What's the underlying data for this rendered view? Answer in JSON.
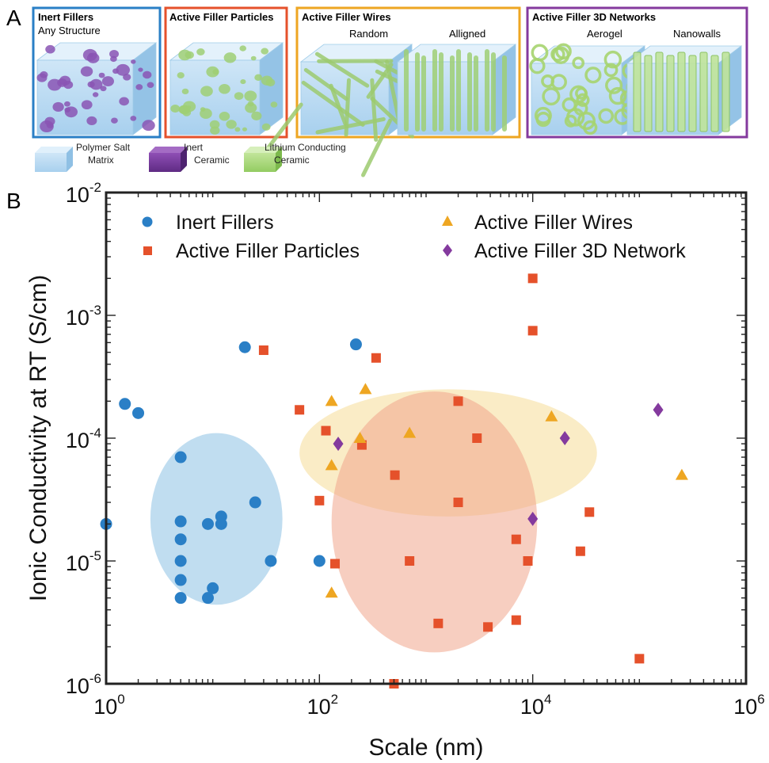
{
  "panel_a": {
    "letter": "A",
    "boxes": [
      {
        "title": "Inert Fillers",
        "subtitle": "Any Structure",
        "color": "#2a7fc6",
        "sublabels": []
      },
      {
        "title": "Active Filler Particles",
        "subtitle": "",
        "color": "#e5512b",
        "sublabels": []
      },
      {
        "title": "Active Filler Wires",
        "subtitle": "",
        "color": "#eea622",
        "sublabels": [
          "Random",
          "Alligned"
        ]
      },
      {
        "title": "Active Filler 3D Networks",
        "subtitle": "",
        "color": "#843a9e",
        "sublabels": [
          "Aerogel",
          "Nanowalls"
        ]
      }
    ],
    "legend": [
      {
        "line1": "Polymer Salt",
        "line2": "Matrix",
        "color": "#a9d3f0"
      },
      {
        "line1": "Inert",
        "line2": "Ceramic",
        "color": "#7a3fa0"
      },
      {
        "line1": "Lithium Conducting",
        "line2": "Ceramic",
        "color": "#a7d77a"
      }
    ]
  },
  "chart_data": {
    "panel_letter": "B",
    "type": "scatter",
    "x_scale": "log",
    "y_scale": "log",
    "xlabel": "Scale (nm)",
    "ylabel": "Ionic Conductivity at RT (S/cm)",
    "xlim": [
      1,
      1000000
    ],
    "ylim": [
      1e-06,
      0.01
    ],
    "x_ticks": [
      {
        "base": "10",
        "exp": "0"
      },
      {
        "base": "10",
        "exp": "2"
      },
      {
        "base": "10",
        "exp": "4"
      },
      {
        "base": "10",
        "exp": "6"
      }
    ],
    "y_ticks": [
      {
        "base": "10",
        "exp": "-6"
      },
      {
        "base": "10",
        "exp": "-5"
      },
      {
        "base": "10",
        "exp": "-4"
      },
      {
        "base": "10",
        "exp": "-3"
      },
      {
        "base": "10",
        "exp": "-2"
      }
    ],
    "grid": false,
    "legend_position": "top",
    "series": [
      {
        "name": "Inert Fillers",
        "marker": "circle",
        "color": "#2a7fc6",
        "points": [
          [
            1,
            2e-05
          ],
          [
            1.5,
            0.00019
          ],
          [
            2,
            0.00016
          ],
          [
            5,
            7e-05
          ],
          [
            5,
            2.1e-05
          ],
          [
            5,
            1.5e-05
          ],
          [
            5,
            1e-05
          ],
          [
            5,
            7e-06
          ],
          [
            5,
            5e-06
          ],
          [
            9,
            2e-05
          ],
          [
            9,
            5e-06
          ],
          [
            10,
            6e-06
          ],
          [
            12,
            2.3e-05
          ],
          [
            12,
            2e-05
          ],
          [
            20,
            0.00055
          ],
          [
            25,
            3e-05
          ],
          [
            35,
            1e-05
          ],
          [
            100,
            1e-05
          ],
          [
            220,
            0.00058
          ]
        ]
      },
      {
        "name": "Active Filler Particles",
        "marker": "square",
        "color": "#e5512b",
        "points": [
          [
            30,
            0.00052
          ],
          [
            65,
            0.00017
          ],
          [
            100,
            3.1e-05
          ],
          [
            115,
            0.000115
          ],
          [
            140,
            9.5e-06
          ],
          [
            250,
            8.8e-05
          ],
          [
            340,
            0.00045
          ],
          [
            500,
            1e-06
          ],
          [
            510,
            5e-05
          ],
          [
            700,
            1e-05
          ],
          [
            1300,
            3.1e-06
          ],
          [
            2000,
            0.0002
          ],
          [
            2000,
            3e-05
          ],
          [
            3800,
            2.9e-06
          ],
          [
            3000,
            0.0001
          ],
          [
            7000,
            1.5e-05
          ],
          [
            7000,
            3.3e-06
          ],
          [
            9000,
            1e-05
          ],
          [
            10000,
            0.002
          ],
          [
            10000,
            0.00075
          ],
          [
            28000,
            1.2e-05
          ],
          [
            34000,
            2.5e-05
          ],
          [
            100000,
            1.6e-06
          ]
        ]
      },
      {
        "name": "Active Filler Wires",
        "marker": "triangle",
        "color": "#eea622",
        "points": [
          [
            130,
            0.0002
          ],
          [
            130,
            6e-05
          ],
          [
            130,
            5.5e-06
          ],
          [
            240,
            0.0001
          ],
          [
            270,
            0.00025
          ],
          [
            700,
            0.00011
          ],
          [
            15000,
            0.00015
          ],
          [
            250000,
            5e-05
          ]
        ]
      },
      {
        "name": "Active Filler 3D Network",
        "marker": "diamond",
        "color": "#843a9e",
        "points": [
          [
            150,
            9e-05
          ],
          [
            10000,
            2.2e-05
          ],
          [
            20000,
            0.0001
          ],
          [
            150000,
            0.00017
          ]
        ]
      }
    ],
    "ellipses": [
      {
        "group": "Inert Fillers",
        "color": "#6aaedc",
        "opacity": 0.42,
        "x_range": [
          2.6,
          45
        ],
        "y_range": [
          4.4e-06,
          0.00011
        ]
      },
      {
        "group": "Active Filler Wires",
        "color": "#f6d98d",
        "opacity": 0.5,
        "x_range": [
          65,
          40000
        ],
        "y_range": [
          2.3e-05,
          0.00025
        ]
      },
      {
        "group": "Active Filler Particles",
        "color": "#f0a68c",
        "opacity": 0.55,
        "x_range": [
          130,
          11000
        ],
        "y_range": [
          1.8e-06,
          0.00024
        ]
      }
    ]
  }
}
